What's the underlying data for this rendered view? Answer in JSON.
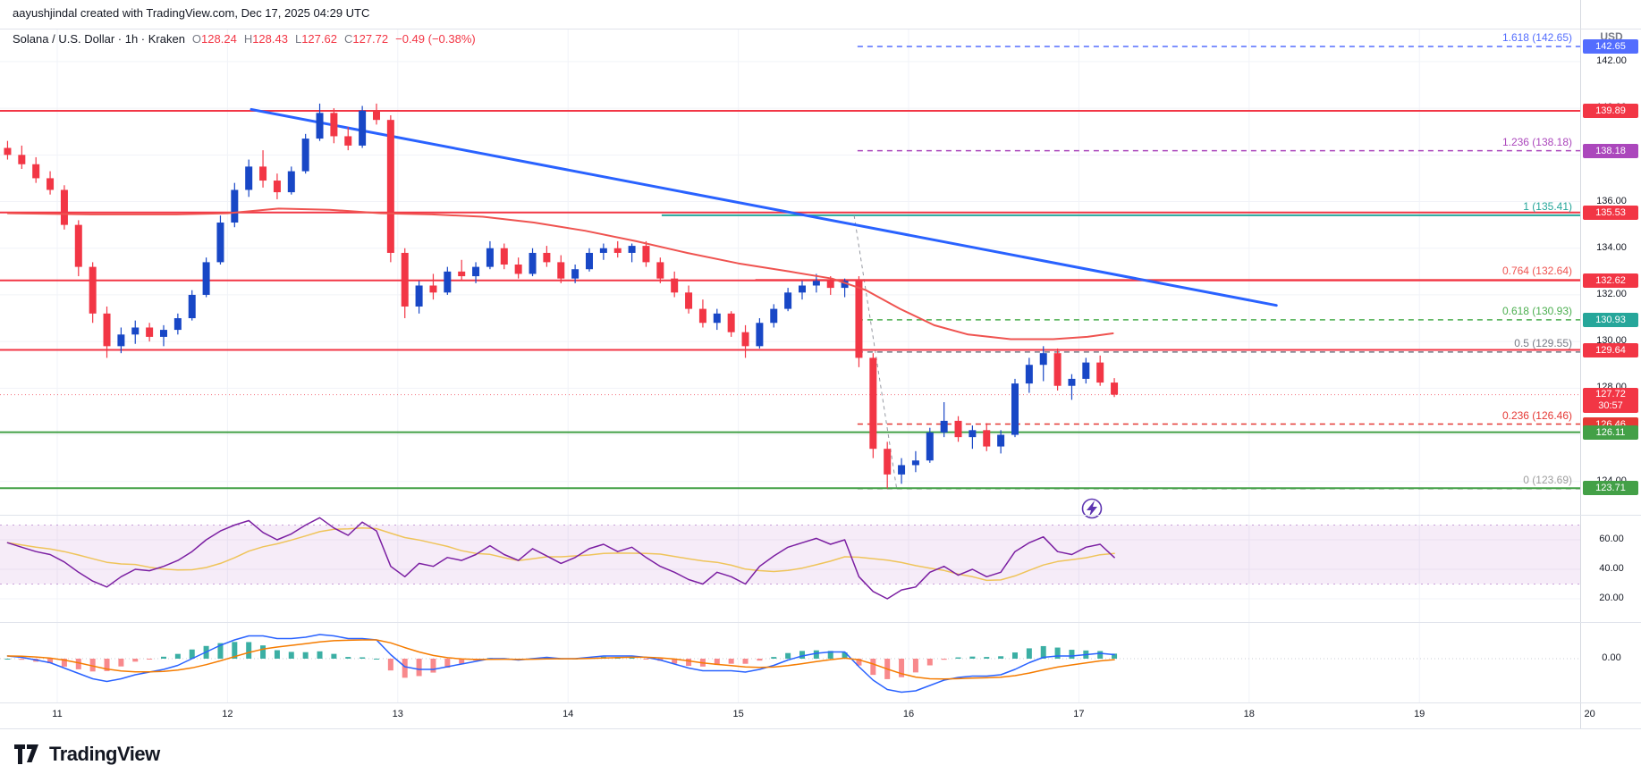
{
  "attribution": "aayushjindal created with TradingView.com, Dec 17, 2025 04:29 UTC",
  "legend": {
    "title": "Solana / U.S. Dollar · 1h · Kraken",
    "ohlc": [
      {
        "k": "O",
        "v": "128.24"
      },
      {
        "k": "H",
        "v": "128.43"
      },
      {
        "k": "L",
        "v": "127.62"
      },
      {
        "k": "C",
        "v": "127.72"
      }
    ],
    "change": "−0.49 (−0.38%)"
  },
  "price_scale": {
    "currency": "USD",
    "ticks": [
      {
        "label": "142.00",
        "value": 142
      },
      {
        "label": "140.00",
        "value": 140
      },
      {
        "label": "138.00",
        "value": 138
      },
      {
        "label": "136.00",
        "value": 136
      },
      {
        "label": "134.00",
        "value": 134
      },
      {
        "label": "132.00",
        "value": 132
      },
      {
        "label": "130.00",
        "value": 130
      },
      {
        "label": "128.00",
        "value": 128
      },
      {
        "label": "126.00",
        "value": 126
      },
      {
        "label": "124.00",
        "value": 124
      }
    ],
    "badges": [
      {
        "text": "142.65",
        "price": 142.65,
        "color": "#536dfe"
      },
      {
        "text": "139.89",
        "price": 139.89,
        "color": "#f23645"
      },
      {
        "text": "138.18",
        "price": 138.18,
        "color": "#ab47bc"
      },
      {
        "text": "135.53",
        "price": 135.53,
        "color": "#f23645"
      },
      {
        "text": "132.62",
        "price": 132.62,
        "color": "#f23645"
      },
      {
        "text": "130.93",
        "price": 130.93,
        "color": "#26a69a"
      },
      {
        "text": "129.64",
        "price": 129.64,
        "color": "#f23645"
      },
      {
        "text": "126.46",
        "price": 126.46,
        "color": "#e53935"
      },
      {
        "text": "126.11",
        "price": 126.11,
        "color": "#43a047"
      },
      {
        "text": "123.71",
        "price": 123.71,
        "color": "#43a047"
      }
    ],
    "current": {
      "text": "127.72",
      "countdown": "30:57",
      "price": 127.72,
      "color": "#f23645"
    }
  },
  "indicator_scales": {
    "rsi_ticks": [
      {
        "label": "60.00",
        "value": 60
      },
      {
        "label": "40.00",
        "value": 40
      },
      {
        "label": "20.00",
        "value": 20
      }
    ],
    "macd_ticks": [
      {
        "label": "0.00",
        "value": 0
      }
    ]
  },
  "time_scale": {
    "labels": [
      "11",
      "12",
      "13",
      "14",
      "15",
      "16",
      "17",
      "18",
      "19",
      "20"
    ],
    "days": [
      11,
      12,
      13,
      14,
      15,
      16,
      17,
      18,
      19,
      20
    ]
  },
  "footer": {
    "logo_text": "TradingView"
  },
  "chart_data": {
    "type": "candlestick",
    "symbol": "SOL/USD",
    "exchange": "Kraken",
    "interval": "1h",
    "candle_hours": 2,
    "start_day": 10.7083,
    "price_axis": {
      "min": 123.2,
      "max": 143.3,
      "grid_step": 2
    },
    "up_color": "#1847c6",
    "down_color": "#f23645",
    "candles": [
      [
        138.3,
        138.6,
        137.8,
        138.0
      ],
      [
        138.0,
        138.4,
        137.4,
        137.6
      ],
      [
        137.6,
        137.9,
        136.8,
        137.0
      ],
      [
        137.0,
        137.3,
        136.3,
        136.5
      ],
      [
        136.5,
        136.7,
        134.8,
        135.0
      ],
      [
        135.0,
        135.2,
        132.8,
        133.2
      ],
      [
        133.2,
        133.4,
        130.8,
        131.2
      ],
      [
        131.2,
        131.5,
        129.3,
        129.8
      ],
      [
        129.8,
        130.6,
        129.5,
        130.3
      ],
      [
        130.3,
        130.9,
        129.9,
        130.6
      ],
      [
        130.6,
        130.8,
        130.0,
        130.2
      ],
      [
        130.2,
        130.7,
        129.8,
        130.5
      ],
      [
        130.5,
        131.2,
        130.3,
        131.0
      ],
      [
        131.0,
        132.2,
        130.9,
        132.0
      ],
      [
        132.0,
        133.6,
        131.9,
        133.4
      ],
      [
        133.4,
        135.4,
        133.3,
        135.1
      ],
      [
        135.1,
        136.8,
        134.9,
        136.5
      ],
      [
        136.5,
        137.8,
        136.2,
        137.5
      ],
      [
        137.5,
        138.2,
        136.6,
        136.9
      ],
      [
        136.9,
        137.2,
        136.1,
        136.4
      ],
      [
        136.4,
        137.5,
        136.3,
        137.3
      ],
      [
        137.3,
        138.9,
        137.2,
        138.7
      ],
      [
        138.7,
        140.2,
        138.6,
        139.8
      ],
      [
        139.8,
        140.0,
        138.5,
        138.8
      ],
      [
        138.8,
        139.2,
        138.2,
        138.4
      ],
      [
        138.4,
        140.1,
        138.3,
        139.9
      ],
      [
        139.9,
        140.2,
        139.3,
        139.5
      ],
      [
        139.5,
        139.7,
        133.4,
        133.8
      ],
      [
        133.8,
        134.0,
        131.0,
        131.5
      ],
      [
        131.5,
        132.6,
        131.2,
        132.4
      ],
      [
        132.4,
        132.9,
        131.8,
        132.1
      ],
      [
        132.1,
        133.2,
        132.0,
        133.0
      ],
      [
        133.0,
        133.5,
        132.6,
        132.8
      ],
      [
        132.8,
        133.4,
        132.5,
        133.2
      ],
      [
        133.2,
        134.3,
        133.1,
        134.0
      ],
      [
        134.0,
        134.2,
        133.1,
        133.3
      ],
      [
        133.3,
        133.6,
        132.7,
        132.9
      ],
      [
        132.9,
        134.0,
        132.8,
        133.8
      ],
      [
        133.8,
        134.1,
        133.2,
        133.4
      ],
      [
        133.4,
        133.7,
        132.5,
        132.7
      ],
      [
        132.7,
        133.3,
        132.5,
        133.1
      ],
      [
        133.1,
        134.0,
        133.0,
        133.8
      ],
      [
        133.8,
        134.2,
        133.5,
        134.0
      ],
      [
        134.0,
        134.3,
        133.6,
        133.8
      ],
      [
        133.8,
        134.2,
        133.4,
        134.1
      ],
      [
        134.1,
        134.3,
        133.2,
        133.4
      ],
      [
        133.4,
        133.6,
        132.5,
        132.7
      ],
      [
        132.7,
        133.0,
        131.9,
        132.1
      ],
      [
        132.1,
        132.4,
        131.2,
        131.4
      ],
      [
        131.4,
        131.8,
        130.6,
        130.8
      ],
      [
        130.8,
        131.4,
        130.5,
        131.2
      ],
      [
        131.2,
        131.3,
        130.2,
        130.4
      ],
      [
        130.4,
        130.7,
        129.3,
        129.8
      ],
      [
        129.8,
        131.0,
        129.7,
        130.8
      ],
      [
        130.8,
        131.6,
        130.6,
        131.4
      ],
      [
        131.4,
        132.3,
        131.3,
        132.1
      ],
      [
        132.1,
        132.6,
        131.8,
        132.4
      ],
      [
        132.4,
        132.9,
        132.1,
        132.6
      ],
      [
        132.6,
        132.8,
        132.0,
        132.3
      ],
      [
        132.3,
        132.7,
        131.9,
        132.6
      ],
      [
        132.6,
        132.8,
        128.9,
        129.3
      ],
      [
        129.3,
        129.5,
        125.0,
        125.4
      ],
      [
        125.4,
        125.7,
        123.7,
        124.3
      ],
      [
        124.3,
        125.0,
        123.9,
        124.7
      ],
      [
        124.7,
        125.3,
        124.4,
        124.9
      ],
      [
        124.9,
        126.3,
        124.8,
        126.1
      ],
      [
        126.1,
        127.4,
        125.9,
        126.6
      ],
      [
        126.6,
        126.8,
        125.7,
        125.9
      ],
      [
        125.9,
        126.4,
        125.4,
        126.2
      ],
      [
        126.2,
        126.5,
        125.3,
        125.5
      ],
      [
        125.5,
        126.2,
        125.2,
        126.0
      ],
      [
        126.0,
        128.4,
        125.9,
        128.2
      ],
      [
        128.2,
        129.3,
        127.8,
        129.0
      ],
      [
        129.0,
        129.8,
        128.3,
        129.5
      ],
      [
        129.5,
        129.7,
        127.9,
        128.1
      ],
      [
        128.1,
        128.6,
        127.5,
        128.4
      ],
      [
        128.4,
        129.3,
        128.2,
        129.1
      ],
      [
        129.1,
        129.4,
        128.1,
        128.24
      ],
      [
        128.24,
        128.43,
        127.62,
        127.72
      ]
    ],
    "ma": {
      "color": "#ef5350",
      "points": [
        [
          10.71,
          135.5
        ],
        [
          11.2,
          135.45
        ],
        [
          11.7,
          135.45
        ],
        [
          12.0,
          135.5
        ],
        [
          12.3,
          135.7
        ],
        [
          12.6,
          135.65
        ],
        [
          12.9,
          135.5
        ],
        [
          13.2,
          135.45
        ],
        [
          13.5,
          135.35
        ],
        [
          13.8,
          135.1
        ],
        [
          14.1,
          134.75
        ],
        [
          14.4,
          134.3
        ],
        [
          14.7,
          133.8
        ],
        [
          15.0,
          133.35
        ],
        [
          15.3,
          133.0
        ],
        [
          15.55,
          132.7
        ],
        [
          15.75,
          132.2
        ],
        [
          15.95,
          131.4
        ],
        [
          16.15,
          130.7
        ],
        [
          16.35,
          130.3
        ],
        [
          16.6,
          130.1
        ],
        [
          16.85,
          130.1
        ],
        [
          17.05,
          130.2
        ],
        [
          17.2,
          130.35
        ]
      ]
    },
    "trendline": {
      "from": [
        12.14,
        139.95
      ],
      "to": [
        18.16,
        131.55
      ],
      "color": "#2962ff"
    },
    "fib_anchor_line": {
      "from": [
        15.68,
        135.41
      ],
      "to": [
        15.93,
        123.69
      ],
      "color": "#9598a1"
    },
    "horizontal_lines": [
      {
        "price": 139.89,
        "color": "#f23645"
      },
      {
        "price": 135.53,
        "color": "#f23645"
      },
      {
        "price": 132.62,
        "color": "#f23645"
      },
      {
        "price": 129.64,
        "color": "#f23645"
      },
      {
        "price": 126.11,
        "color": "#43a047"
      },
      {
        "price": 123.71,
        "color": "#43a047"
      }
    ],
    "fib_levels": [
      {
        "label": "1.618 (142.65)",
        "price": 142.65,
        "color": "#536dfe",
        "start_day": 15.7,
        "dashed": true
      },
      {
        "label": "1.236 (138.18)",
        "price": 138.18,
        "color": "#ab47bc",
        "start_day": 15.7,
        "dashed": true
      },
      {
        "label": "1 (135.41)",
        "price": 135.41,
        "color": "#26a69a",
        "start_day": 14.55,
        "dashed": false
      },
      {
        "label": "0.764 (132.64)",
        "price": 132.64,
        "color": "#ef5350",
        "start_day": 15.1,
        "dashed": false
      },
      {
        "label": "0.618 (130.93)",
        "price": 130.93,
        "color": "#4caf50",
        "start_day": 15.7,
        "dashed": true
      },
      {
        "label": "0.5 (129.55)",
        "price": 129.55,
        "color": "#787b86",
        "start_day": 15.7,
        "dashed": true
      },
      {
        "label": "0.236 (126.46)",
        "price": 126.46,
        "color": "#e53935",
        "start_day": 15.7,
        "dashed": true
      },
      {
        "label": "0 (123.69)",
        "price": 123.69,
        "color": "#9e9e9e",
        "start_day": 15.7,
        "dashed": true
      }
    ],
    "rsi": {
      "band": [
        30,
        70
      ],
      "ticks": [
        60,
        40,
        20
      ],
      "color": "#7b1fa2",
      "signal_color": "#efc45a",
      "band_fill": "rgba(156,39,176,0.09)",
      "values": [
        58,
        55,
        52,
        50,
        45,
        38,
        32,
        28,
        35,
        40,
        39,
        42,
        46,
        52,
        60,
        66,
        70,
        73,
        65,
        60,
        64,
        70,
        75,
        68,
        63,
        72,
        66,
        42,
        35,
        44,
        42,
        48,
        46,
        50,
        56,
        50,
        46,
        54,
        49,
        44,
        48,
        54,
        57,
        52,
        55,
        48,
        42,
        38,
        33,
        30,
        38,
        35,
        30,
        42,
        49,
        55,
        58,
        61,
        57,
        60,
        35,
        25,
        20,
        26,
        28,
        38,
        42,
        36,
        40,
        35,
        38,
        52,
        58,
        62,
        52,
        50,
        55,
        57,
        48
      ]
    },
    "macd": {
      "line_color": "#2962ff",
      "signal_color": "#f57c00",
      "hist_up": "#26a69a",
      "hist_down": "#f77c80",
      "values": [
        0.2,
        0.1,
        -0.1,
        -0.3,
        -0.7,
        -1.1,
        -1.5,
        -1.7,
        -1.5,
        -1.2,
        -1.0,
        -0.8,
        -0.5,
        0.0,
        0.5,
        1.0,
        1.4,
        1.7,
        1.7,
        1.5,
        1.5,
        1.6,
        1.8,
        1.7,
        1.5,
        1.5,
        1.4,
        0.3,
        -0.6,
        -0.8,
        -0.8,
        -0.6,
        -0.4,
        -0.2,
        0.0,
        0.0,
        -0.1,
        0.0,
        0.1,
        0.0,
        0.0,
        0.1,
        0.2,
        0.2,
        0.2,
        0.1,
        -0.1,
        -0.4,
        -0.7,
        -0.9,
        -0.9,
        -0.9,
        -1.0,
        -0.8,
        -0.5,
        -0.1,
        0.2,
        0.4,
        0.5,
        0.5,
        -0.6,
        -1.6,
        -2.3,
        -2.5,
        -2.4,
        -2.0,
        -1.6,
        -1.4,
        -1.3,
        -1.3,
        -1.2,
        -0.8,
        -0.3,
        0.1,
        0.2,
        0.2,
        0.3,
        0.4,
        0.3
      ]
    }
  }
}
